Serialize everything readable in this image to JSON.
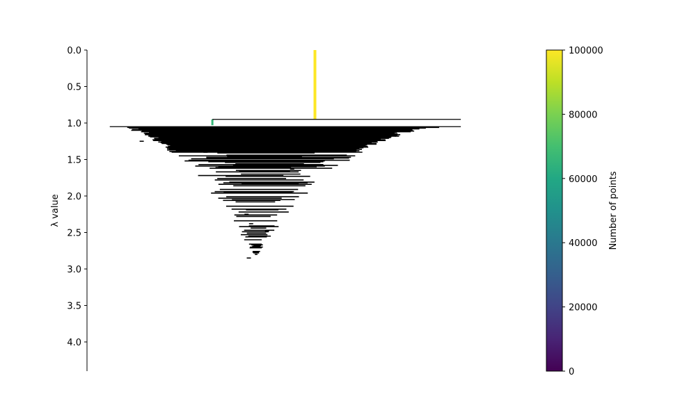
{
  "chart_data": {
    "type": "condensed-tree",
    "ylabel": "λ value",
    "y_axis": {
      "ylim": [
        0.0,
        4.4
      ],
      "inverted": true,
      "ticks": [
        0.0,
        0.5,
        1.0,
        1.5,
        2.0,
        2.5,
        3.0,
        3.5,
        4.0
      ],
      "tick_labels": [
        "0.0",
        "0.5",
        "1.0",
        "1.5",
        "2.0",
        "2.5",
        "3.0",
        "3.5",
        "4.0"
      ]
    },
    "x_visible": false,
    "colorbar": {
      "label": "Number of points",
      "colormap": "viridis",
      "range": [
        0,
        100000
      ],
      "ticks": [
        0,
        20000,
        40000,
        60000,
        80000,
        100000
      ],
      "tick_labels": [
        "0",
        "20000",
        "40000",
        "60000",
        "80000",
        "100000"
      ]
    },
    "root_branch": {
      "x": 0.5,
      "lambda_from": 0.0,
      "lambda_to": 0.95,
      "points": 100000,
      "color": "#fde725"
    },
    "secondary_branch": {
      "x": 0.275,
      "lambda_from": 0.95,
      "lambda_to": 1.03,
      "points": 65000,
      "color": "#35b779"
    },
    "split_lines": [
      {
        "lambda": 0.95,
        "x_start": 0.275,
        "x_end": 0.82
      },
      {
        "lambda": 1.05,
        "x_start": 0.05,
        "x_end": 0.82
      }
    ],
    "fan": {
      "apex_x": 0.37,
      "apex_lambda": 2.85,
      "top_lambda": 1.05,
      "top_left": 0.05,
      "top_right": 0.82,
      "level_step": 0.01
    },
    "outlier_ticks": [
      {
        "x": 0.12,
        "lambda": 1.25
      },
      {
        "x": 0.61,
        "lambda": 1.2
      },
      {
        "x": 0.68,
        "lambda": 1.18
      },
      {
        "x": 0.26,
        "lambda": 1.4
      },
      {
        "x": 0.45,
        "lambda": 1.63
      },
      {
        "x": 0.43,
        "lambda": 1.82
      },
      {
        "x": 0.35,
        "lambda": 2.25
      },
      {
        "x": 0.395,
        "lambda": 2.48
      },
      {
        "x": 0.36,
        "lambda": 2.38
      },
      {
        "x": 0.37,
        "lambda": 2.68
      },
      {
        "x": 0.355,
        "lambda": 2.85
      }
    ],
    "colors": {
      "lines": "#000000",
      "background": "#ffffff"
    }
  }
}
